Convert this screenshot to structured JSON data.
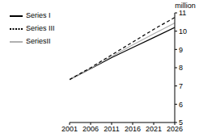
{
  "chart_data": {
    "type": "line",
    "y_label": "million",
    "x": [
      2001,
      2006,
      2011,
      2016,
      2021,
      2026
    ],
    "series": [
      {
        "name": "Series I",
        "color": "#000000",
        "line_style": "solid",
        "values": [
          7.35,
          7.95,
          8.55,
          9.1,
          9.65,
          10.2
        ]
      },
      {
        "name": "SeriesII",
        "color": "#b0b0b0",
        "line_style": "solid",
        "values": [
          7.35,
          7.97,
          8.62,
          9.25,
          9.85,
          10.45
        ]
      },
      {
        "name": "Series III",
        "color": "#000000",
        "line_style": "dashed",
        "values": [
          7.35,
          8.0,
          8.7,
          9.4,
          10.1,
          10.75
        ]
      }
    ],
    "xlim": [
      2001,
      2026
    ],
    "xticks": [
      2001,
      2006,
      2011,
      2016,
      2021,
      2026
    ],
    "ylim": [
      5,
      11
    ],
    "yticks": [
      5,
      6,
      7,
      8,
      9,
      10,
      11
    ],
    "grid": false,
    "legend": "upper left"
  }
}
